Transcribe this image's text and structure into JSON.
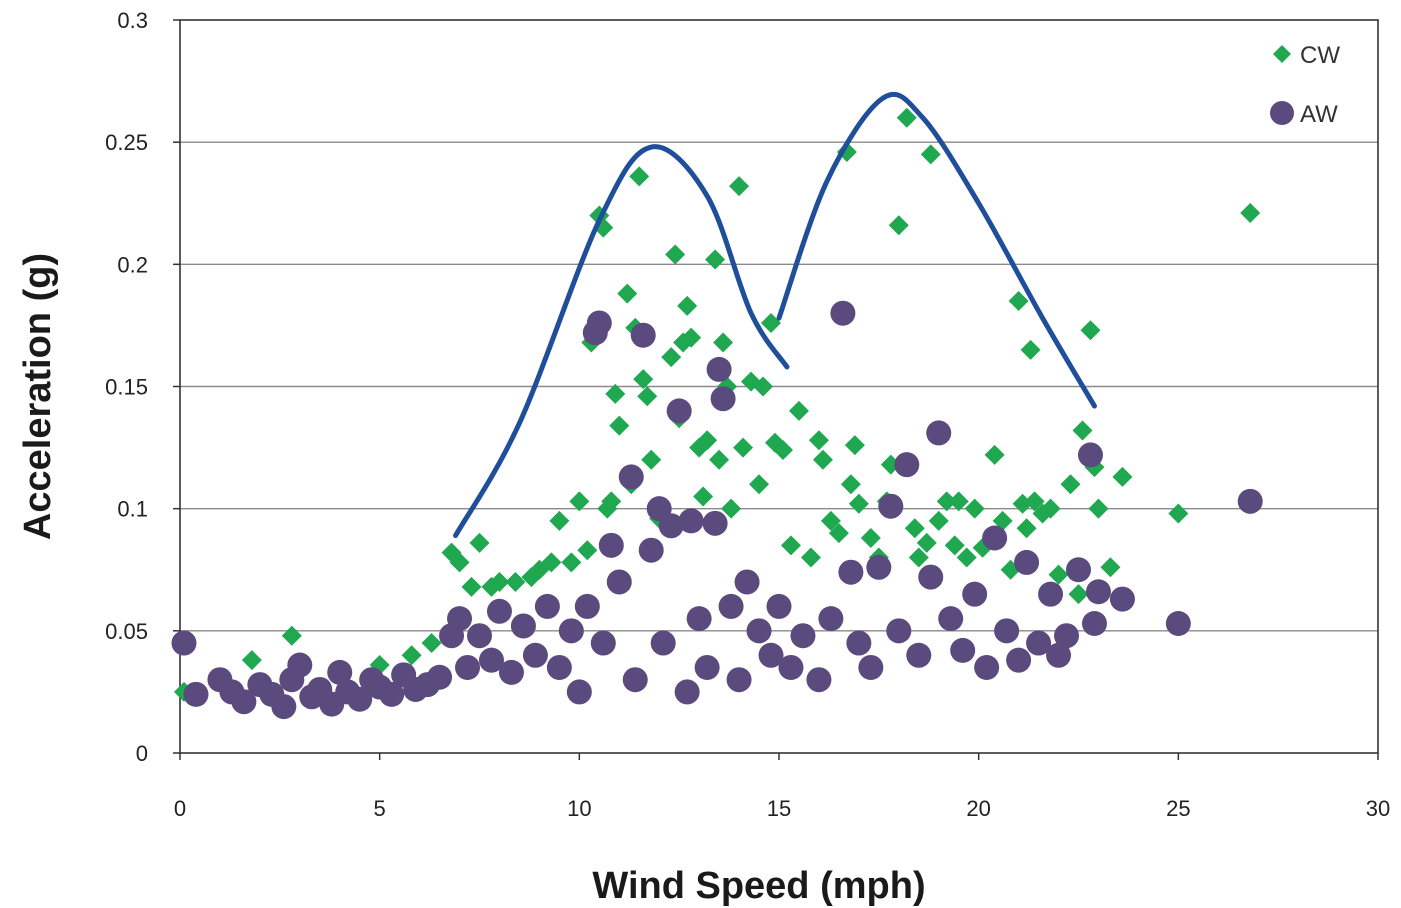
{
  "chart_data": {
    "type": "scatter",
    "title": "",
    "xlabel": "Wind Speed (mph)",
    "ylabel": "Acceleration (g)",
    "xlim": [
      0,
      30
    ],
    "ylim": [
      0,
      0.3
    ],
    "xticks": [
      "0",
      "5",
      "10",
      "15",
      "20",
      "25",
      "30"
    ],
    "yticks": [
      "0",
      "0.05",
      "0.1",
      "0.15",
      "0.2",
      "0.25",
      "0.3"
    ],
    "grid": "horizontal",
    "legend_position": "top-right",
    "series": [
      {
        "name": "CW",
        "marker": "diamond",
        "color": "#1fa84f",
        "points": [
          [
            0.1,
            0.025
          ],
          [
            1.8,
            0.038
          ],
          [
            2.8,
            0.048
          ],
          [
            5.0,
            0.036
          ],
          [
            5.8,
            0.04
          ],
          [
            6.3,
            0.045
          ],
          [
            6.8,
            0.082
          ],
          [
            7.0,
            0.078
          ],
          [
            7.3,
            0.068
          ],
          [
            7.5,
            0.086
          ],
          [
            7.8,
            0.068
          ],
          [
            8.0,
            0.07
          ],
          [
            8.4,
            0.07
          ],
          [
            8.8,
            0.072
          ],
          [
            9.0,
            0.075
          ],
          [
            9.3,
            0.078
          ],
          [
            9.5,
            0.095
          ],
          [
            9.8,
            0.078
          ],
          [
            10.0,
            0.103
          ],
          [
            10.2,
            0.083
          ],
          [
            10.3,
            0.168
          ],
          [
            10.5,
            0.22
          ],
          [
            10.6,
            0.215
          ],
          [
            10.7,
            0.1
          ],
          [
            10.8,
            0.103
          ],
          [
            10.9,
            0.147
          ],
          [
            11.0,
            0.134
          ],
          [
            11.2,
            0.188
          ],
          [
            11.3,
            0.11
          ],
          [
            11.4,
            0.174
          ],
          [
            11.5,
            0.236
          ],
          [
            11.6,
            0.153
          ],
          [
            11.7,
            0.146
          ],
          [
            11.8,
            0.12
          ],
          [
            12.0,
            0.096
          ],
          [
            12.3,
            0.162
          ],
          [
            12.4,
            0.204
          ],
          [
            12.5,
            0.137
          ],
          [
            12.6,
            0.168
          ],
          [
            12.7,
            0.183
          ],
          [
            12.8,
            0.17
          ],
          [
            13.0,
            0.125
          ],
          [
            13.1,
            0.105
          ],
          [
            13.2,
            0.128
          ],
          [
            13.4,
            0.202
          ],
          [
            13.5,
            0.12
          ],
          [
            13.6,
            0.168
          ],
          [
            13.7,
            0.15
          ],
          [
            13.8,
            0.1
          ],
          [
            14.0,
            0.232
          ],
          [
            14.1,
            0.125
          ],
          [
            14.3,
            0.152
          ],
          [
            14.5,
            0.11
          ],
          [
            14.6,
            0.15
          ],
          [
            14.8,
            0.176
          ],
          [
            14.9,
            0.127
          ],
          [
            15.1,
            0.124
          ],
          [
            15.3,
            0.085
          ],
          [
            15.5,
            0.14
          ],
          [
            15.8,
            0.08
          ],
          [
            16.0,
            0.128
          ],
          [
            16.1,
            0.12
          ],
          [
            16.3,
            0.095
          ],
          [
            16.5,
            0.09
          ],
          [
            16.7,
            0.246
          ],
          [
            16.8,
            0.11
          ],
          [
            16.9,
            0.126
          ],
          [
            17.0,
            0.102
          ],
          [
            17.3,
            0.088
          ],
          [
            17.5,
            0.08
          ],
          [
            17.7,
            0.103
          ],
          [
            17.8,
            0.118
          ],
          [
            18.0,
            0.216
          ],
          [
            18.2,
            0.26
          ],
          [
            18.4,
            0.092
          ],
          [
            18.5,
            0.08
          ],
          [
            18.7,
            0.086
          ],
          [
            18.8,
            0.245
          ],
          [
            19.0,
            0.095
          ],
          [
            19.2,
            0.103
          ],
          [
            19.4,
            0.085
          ],
          [
            19.5,
            0.103
          ],
          [
            19.7,
            0.08
          ],
          [
            19.9,
            0.1
          ],
          [
            20.1,
            0.084
          ],
          [
            20.4,
            0.122
          ],
          [
            20.6,
            0.095
          ],
          [
            20.8,
            0.075
          ],
          [
            21.0,
            0.185
          ],
          [
            21.1,
            0.102
          ],
          [
            21.2,
            0.092
          ],
          [
            21.3,
            0.165
          ],
          [
            21.4,
            0.103
          ],
          [
            21.6,
            0.098
          ],
          [
            21.8,
            0.1
          ],
          [
            22.0,
            0.073
          ],
          [
            22.3,
            0.11
          ],
          [
            22.5,
            0.065
          ],
          [
            22.6,
            0.132
          ],
          [
            22.8,
            0.173
          ],
          [
            22.9,
            0.117
          ],
          [
            23.0,
            0.1
          ],
          [
            23.3,
            0.076
          ],
          [
            23.6,
            0.113
          ],
          [
            25.0,
            0.098
          ],
          [
            26.8,
            0.221
          ]
        ]
      },
      {
        "name": "AW",
        "marker": "circle",
        "color": "#5b4a7d",
        "points": [
          [
            0.1,
            0.045
          ],
          [
            0.4,
            0.024
          ],
          [
            1.0,
            0.03
          ],
          [
            1.3,
            0.025
          ],
          [
            1.6,
            0.021
          ],
          [
            2.0,
            0.028
          ],
          [
            2.3,
            0.024
          ],
          [
            2.6,
            0.019
          ],
          [
            2.8,
            0.03
          ],
          [
            3.0,
            0.036
          ],
          [
            3.3,
            0.023
          ],
          [
            3.5,
            0.026
          ],
          [
            3.8,
            0.02
          ],
          [
            4.0,
            0.033
          ],
          [
            4.2,
            0.025
          ],
          [
            4.5,
            0.022
          ],
          [
            4.8,
            0.03
          ],
          [
            5.0,
            0.027
          ],
          [
            5.3,
            0.024
          ],
          [
            5.6,
            0.032
          ],
          [
            5.9,
            0.026
          ],
          [
            6.2,
            0.028
          ],
          [
            6.5,
            0.031
          ],
          [
            6.8,
            0.048
          ],
          [
            7.0,
            0.055
          ],
          [
            7.2,
            0.035
          ],
          [
            7.5,
            0.048
          ],
          [
            7.8,
            0.038
          ],
          [
            8.0,
            0.058
          ],
          [
            8.3,
            0.033
          ],
          [
            8.6,
            0.052
          ],
          [
            8.9,
            0.04
          ],
          [
            9.2,
            0.06
          ],
          [
            9.5,
            0.035
          ],
          [
            9.8,
            0.05
          ],
          [
            10.0,
            0.025
          ],
          [
            10.2,
            0.06
          ],
          [
            10.4,
            0.172
          ],
          [
            10.5,
            0.176
          ],
          [
            10.6,
            0.045
          ],
          [
            10.8,
            0.085
          ],
          [
            11.0,
            0.07
          ],
          [
            11.3,
            0.113
          ],
          [
            11.4,
            0.03
          ],
          [
            11.6,
            0.171
          ],
          [
            11.8,
            0.083
          ],
          [
            12.0,
            0.1
          ],
          [
            12.1,
            0.045
          ],
          [
            12.3,
            0.093
          ],
          [
            12.5,
            0.14
          ],
          [
            12.7,
            0.025
          ],
          [
            12.8,
            0.095
          ],
          [
            13.0,
            0.055
          ],
          [
            13.2,
            0.035
          ],
          [
            13.4,
            0.094
          ],
          [
            13.5,
            0.157
          ],
          [
            13.6,
            0.145
          ],
          [
            13.8,
            0.06
          ],
          [
            14.0,
            0.03
          ],
          [
            14.2,
            0.07
          ],
          [
            14.5,
            0.05
          ],
          [
            14.8,
            0.04
          ],
          [
            15.0,
            0.06
          ],
          [
            15.3,
            0.035
          ],
          [
            15.6,
            0.048
          ],
          [
            16.0,
            0.03
          ],
          [
            16.3,
            0.055
          ],
          [
            16.6,
            0.18
          ],
          [
            16.8,
            0.074
          ],
          [
            17.0,
            0.045
          ],
          [
            17.3,
            0.035
          ],
          [
            17.5,
            0.076
          ],
          [
            17.8,
            0.101
          ],
          [
            18.0,
            0.05
          ],
          [
            18.2,
            0.118
          ],
          [
            18.5,
            0.04
          ],
          [
            18.8,
            0.072
          ],
          [
            19.0,
            0.131
          ],
          [
            19.3,
            0.055
          ],
          [
            19.6,
            0.042
          ],
          [
            19.9,
            0.065
          ],
          [
            20.2,
            0.035
          ],
          [
            20.4,
            0.088
          ],
          [
            20.7,
            0.05
          ],
          [
            21.0,
            0.038
          ],
          [
            21.2,
            0.078
          ],
          [
            21.5,
            0.045
          ],
          [
            21.8,
            0.065
          ],
          [
            22.0,
            0.04
          ],
          [
            22.2,
            0.048
          ],
          [
            22.5,
            0.075
          ],
          [
            22.8,
            0.122
          ],
          [
            22.9,
            0.053
          ],
          [
            23.0,
            0.066
          ],
          [
            23.6,
            0.063
          ],
          [
            25.0,
            0.053
          ],
          [
            26.8,
            0.103
          ]
        ]
      }
    ],
    "annotations": [
      {
        "type": "hump-curve",
        "color": "#1f4e9b",
        "points": [
          [
            6.9,
            0.089
          ],
          [
            8.5,
            0.135
          ],
          [
            10.5,
            0.218
          ],
          [
            11.8,
            0.248
          ],
          [
            13.2,
            0.228
          ],
          [
            14.3,
            0.18
          ],
          [
            15.2,
            0.158
          ]
        ]
      },
      {
        "type": "hump-curve",
        "color": "#1f4e9b",
        "points": [
          [
            15.0,
            0.178
          ],
          [
            16.2,
            0.234
          ],
          [
            17.6,
            0.268
          ],
          [
            18.6,
            0.26
          ],
          [
            20.0,
            0.225
          ],
          [
            21.6,
            0.178
          ],
          [
            22.9,
            0.142
          ]
        ]
      }
    ]
  }
}
